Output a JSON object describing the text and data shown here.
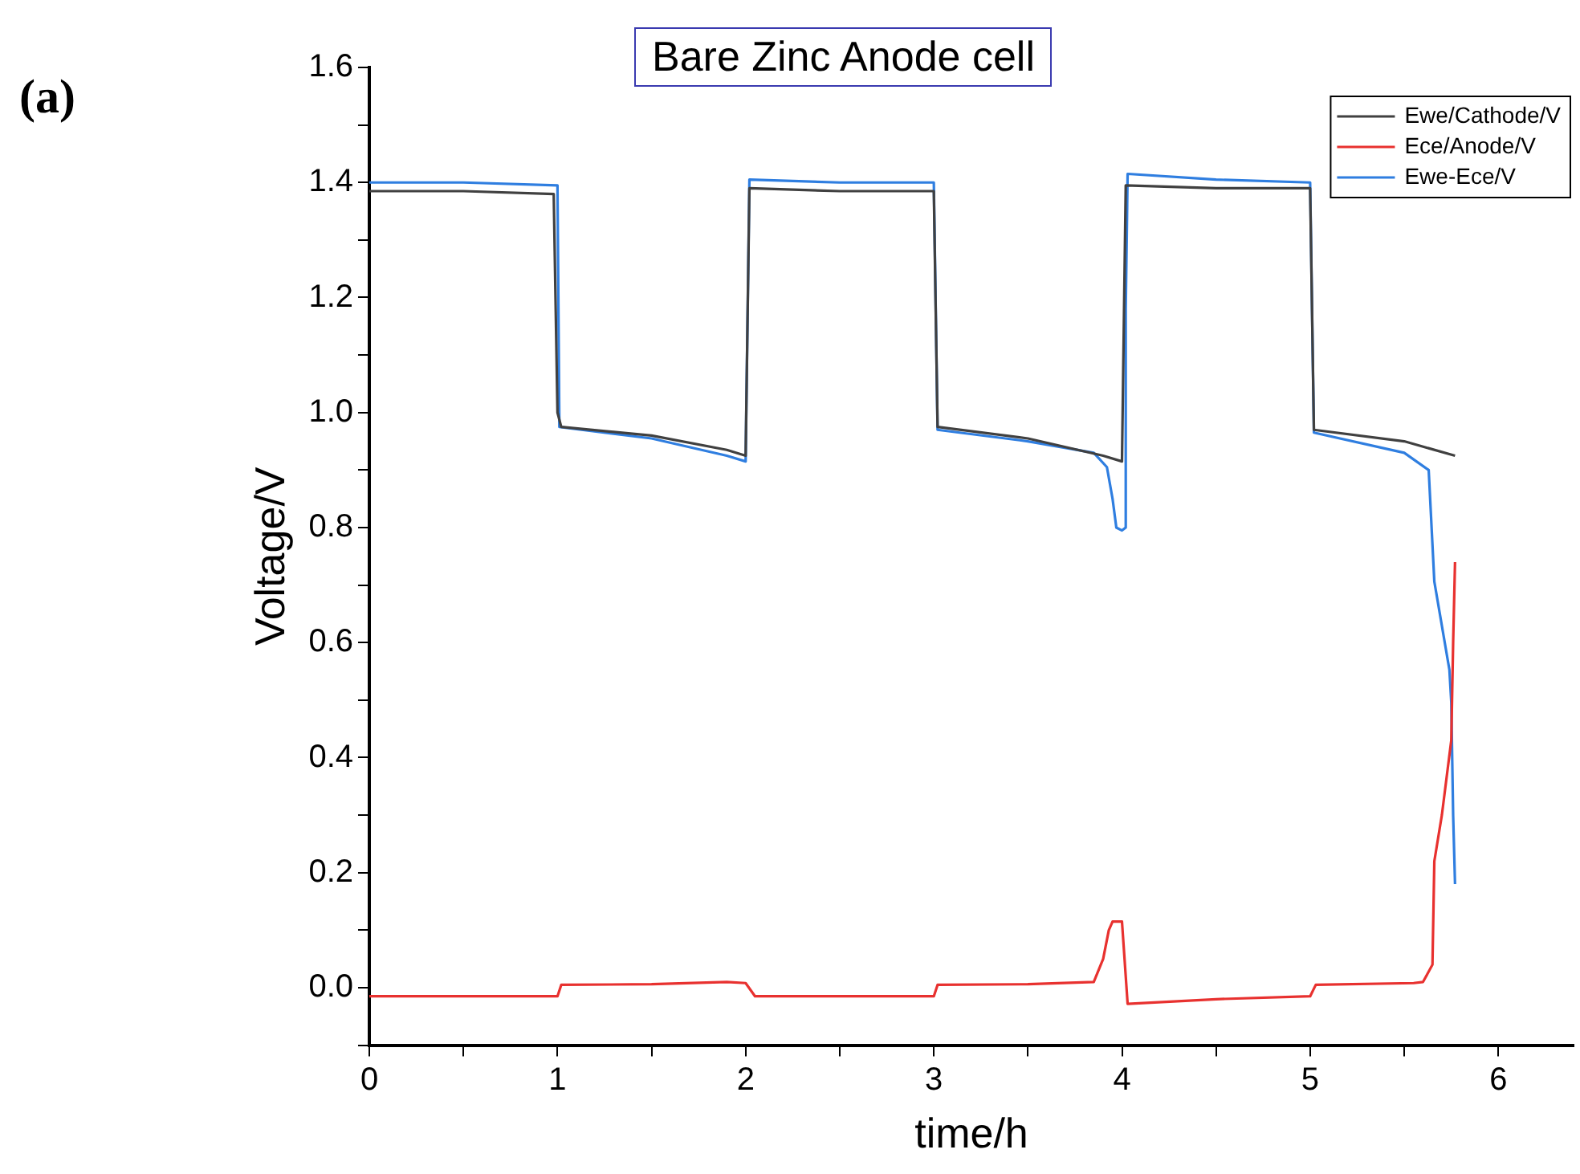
{
  "chart_data": {
    "type": "line",
    "title": "Bare Zinc Anode cell",
    "xlabel": "time/h",
    "ylabel": "Voltage/V",
    "annotations": [
      "(a)"
    ],
    "xlim": [
      0,
      6.4
    ],
    "ylim": [
      -0.1,
      1.6
    ],
    "xticks": [
      0,
      {
        "value": 0.5,
        "label": null
      },
      1,
      {
        "value": 1.5,
        "label": null
      },
      2,
      {
        "value": 2.5,
        "label": null
      },
      3,
      {
        "value": 3.5,
        "label": null
      },
      4,
      {
        "value": 4.5,
        "label": null
      },
      5,
      {
        "value": 5.5,
        "label": null
      },
      6
    ],
    "yticks": [
      {
        "value": -0.1,
        "label": null
      },
      {
        "value": 0,
        "label": "0.0"
      },
      {
        "value": 0.1,
        "label": null
      },
      0.2,
      {
        "value": 0.3,
        "label": null
      },
      0.4,
      {
        "value": 0.5,
        "label": null
      },
      0.6,
      {
        "value": 0.7,
        "label": null
      },
      0.8,
      {
        "value": 0.9,
        "label": null
      },
      {
        "value": 1,
        "label": "1.0"
      },
      {
        "value": 1.1,
        "label": null
      },
      1.2,
      {
        "value": 1.3,
        "label": null
      },
      1.4,
      {
        "value": 1.5,
        "label": null
      },
      1.6
    ],
    "grid": false,
    "legend": "top right",
    "marker": "none",
    "line_style": "solid",
    "series": [
      {
        "name": "Ewe/Cathode/V",
        "color": "#404040",
        "x": [
          0,
          0.5,
          0.98,
          1.0,
          1.02,
          1.5,
          1.9,
          2.0,
          2.02,
          2.5,
          3.0,
          3.02,
          3.5,
          3.9,
          4.0,
          4.02,
          4.5,
          5.0,
          5.02,
          5.5,
          5.77
        ],
        "values": [
          1.385,
          1.385,
          1.38,
          1.0,
          0.975,
          0.96,
          0.935,
          0.925,
          1.39,
          1.385,
          1.385,
          0.975,
          0.955,
          0.925,
          0.915,
          1.395,
          1.39,
          1.39,
          0.97,
          0.95,
          0.925
        ]
      },
      {
        "name": "Ece/Anode/V",
        "color": "#e8312f",
        "x": [
          0,
          0.5,
          1.0,
          1.02,
          1.5,
          1.9,
          2.0,
          2.05,
          2.5,
          3.0,
          3.02,
          3.5,
          3.85,
          3.9,
          3.93,
          3.95,
          4.0,
          4.03,
          4.5,
          5.0,
          5.03,
          5.55,
          5.6,
          5.65,
          5.66,
          5.7,
          5.75,
          5.76,
          5.77
        ],
        "values": [
          -0.015,
          -0.015,
          -0.015,
          0.005,
          0.006,
          0.01,
          0.008,
          -0.015,
          -0.015,
          -0.015,
          0.005,
          0.006,
          0.01,
          0.05,
          0.1,
          0.115,
          0.115,
          -0.028,
          -0.02,
          -0.015,
          0.005,
          0.008,
          0.01,
          0.04,
          0.22,
          0.3,
          0.43,
          0.6,
          0.74
        ]
      },
      {
        "name": "Ewe-Ece/V",
        "color": "#2f7ee0",
        "x": [
          0,
          0.5,
          1.0,
          1.01,
          1.5,
          1.9,
          2.0,
          2.02,
          2.5,
          3.0,
          3.02,
          3.5,
          3.85,
          3.92,
          3.95,
          3.97,
          4.0,
          4.02,
          4.02,
          4.03,
          4.5,
          5.0,
          5.02,
          5.5,
          5.63,
          5.66,
          5.74,
          5.75,
          5.76,
          5.77
        ],
        "values": [
          1.4,
          1.4,
          1.395,
          0.975,
          0.955,
          0.925,
          0.915,
          1.405,
          1.4,
          1.4,
          0.97,
          0.95,
          0.93,
          0.905,
          0.85,
          0.8,
          0.795,
          0.8,
          1.18,
          1.415,
          1.405,
          1.4,
          0.965,
          0.93,
          0.9,
          0.706,
          0.553,
          0.496,
          0.3,
          0.18
        ]
      }
    ]
  }
}
